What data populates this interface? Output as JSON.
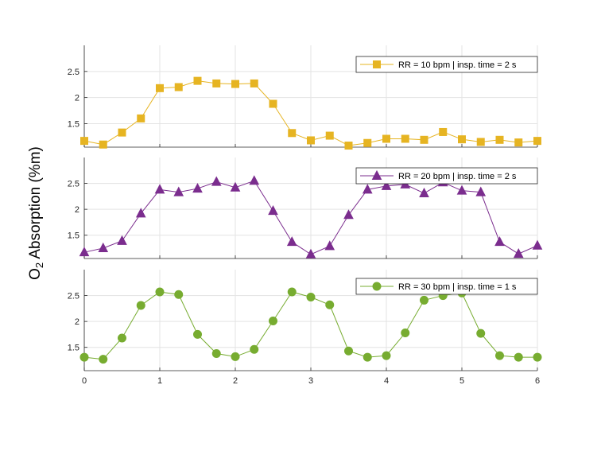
{
  "figure": {
    "ylabel_prefix": "O",
    "ylabel_sub": "2",
    "ylabel_suffix": " Absorption (%m)"
  },
  "chart_data": [
    {
      "type": "line",
      "series": [
        {
          "name": "RR = 10 bpm | insp. time = 2 s",
          "marker": "square",
          "color": "#E6B422",
          "values": [
            1.17,
            1.1,
            1.33,
            1.6,
            2.18,
            2.2,
            2.32,
            2.27,
            2.26,
            2.27,
            1.88,
            1.32,
            1.18,
            1.27,
            1.08,
            1.13,
            1.21,
            1.21,
            1.19,
            1.34,
            1.2,
            1.15,
            1.19,
            1.14,
            1.17
          ]
        }
      ],
      "x": [
        0,
        0.25,
        0.5,
        0.75,
        1,
        1.25,
        1.5,
        1.75,
        2,
        2.25,
        2.5,
        2.75,
        3,
        3.25,
        3.5,
        3.75,
        4,
        4.25,
        4.5,
        4.75,
        5,
        5.25,
        5.5,
        5.75,
        6
      ],
      "xlim": [
        0,
        6
      ],
      "ylim": [
        1.05,
        3.0
      ],
      "yticks": [
        "1.5",
        "2",
        "2.5"
      ],
      "ytick_values": [
        1.5,
        2,
        2.5
      ],
      "grid": true,
      "legend": "top-right"
    },
    {
      "type": "line",
      "series": [
        {
          "name": "RR = 20 bpm | insp. time = 2 s",
          "marker": "triangle",
          "color": "#7B2D8E",
          "values": [
            1.17,
            1.25,
            1.39,
            1.92,
            2.38,
            2.33,
            2.4,
            2.53,
            2.42,
            2.55,
            1.97,
            1.37,
            1.13,
            1.29,
            1.89,
            2.38,
            2.45,
            2.48,
            2.31,
            2.52,
            2.36,
            2.33,
            1.37,
            1.14,
            1.3
          ]
        }
      ],
      "x": [
        0,
        0.25,
        0.5,
        0.75,
        1,
        1.25,
        1.5,
        1.75,
        2,
        2.25,
        2.5,
        2.75,
        3,
        3.25,
        3.5,
        3.75,
        4,
        4.25,
        4.5,
        4.75,
        5,
        5.25,
        5.5,
        5.75,
        6
      ],
      "xlim": [
        0,
        6
      ],
      "ylim": [
        1.05,
        3.0
      ],
      "yticks": [
        "1.5",
        "2",
        "2.5"
      ],
      "ytick_values": [
        1.5,
        2,
        2.5
      ],
      "grid": true,
      "legend": "top-right"
    },
    {
      "type": "line",
      "series": [
        {
          "name": "RR = 30 bpm | insp. time = 1 s",
          "marker": "circle",
          "color": "#77AC30",
          "values": [
            1.31,
            1.27,
            1.68,
            2.31,
            2.57,
            2.52,
            1.75,
            1.38,
            1.32,
            1.46,
            2.01,
            2.57,
            2.47,
            2.32,
            1.43,
            1.31,
            1.34,
            1.78,
            2.41,
            2.5,
            2.55,
            1.77,
            1.34,
            1.31,
            1.31
          ]
        }
      ],
      "x": [
        0,
        0.25,
        0.5,
        0.75,
        1,
        1.25,
        1.5,
        1.75,
        2,
        2.25,
        2.5,
        2.75,
        3,
        3.25,
        3.5,
        3.75,
        4,
        4.25,
        4.5,
        4.75,
        5,
        5.25,
        5.5,
        5.75,
        6
      ],
      "xlim": [
        0,
        6
      ],
      "ylim": [
        1.05,
        3.0
      ],
      "yticks": [
        "1.5",
        "2",
        "2.5"
      ],
      "ytick_values": [
        1.5,
        2,
        2.5
      ],
      "xticks": [
        "0",
        "1",
        "2",
        "3",
        "4",
        "5",
        "6"
      ],
      "xtick_values": [
        0,
        1,
        2,
        3,
        4,
        5,
        6
      ],
      "grid": true,
      "legend": "top-right"
    }
  ]
}
